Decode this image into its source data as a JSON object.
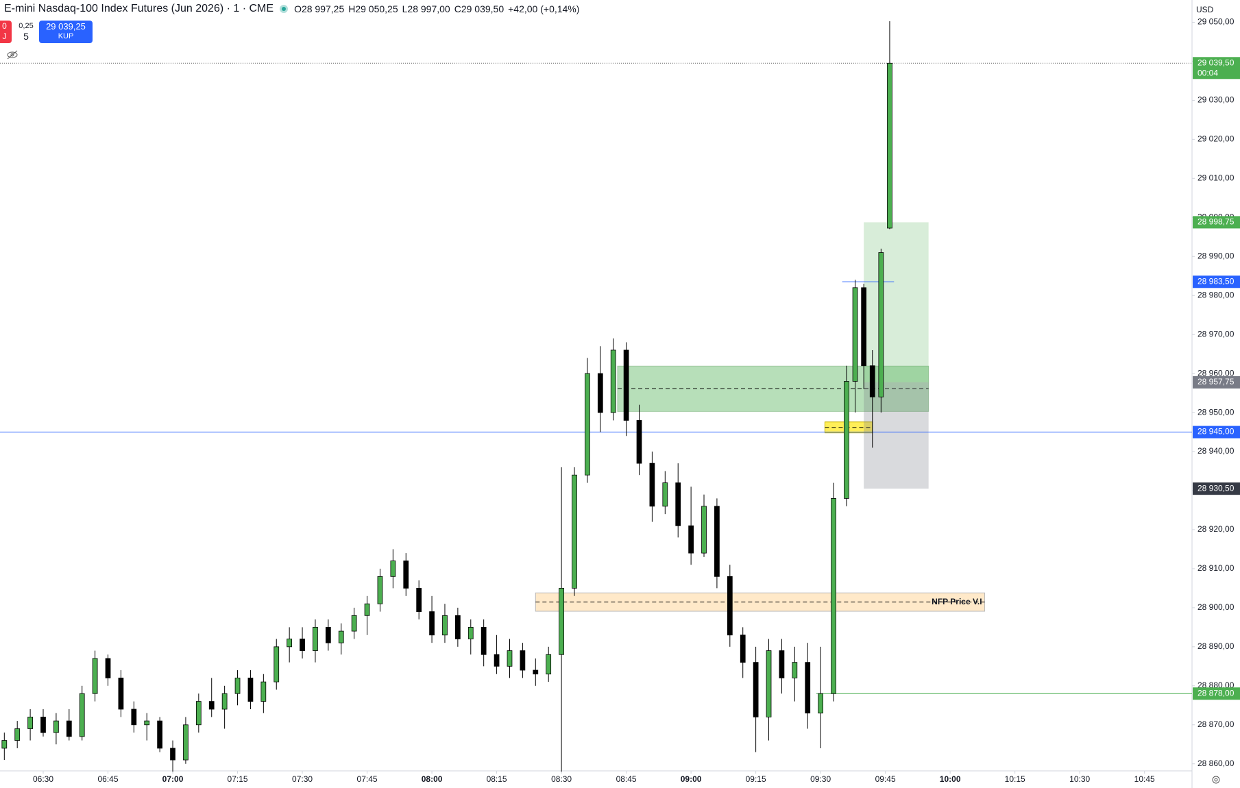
{
  "header": {
    "title": "E-mini Nasdaq-100 Index Futures (Jun 2026) · 1 · CME",
    "ohlc": [
      "O28 997,25",
      "H29 050,25",
      "L28 997,00",
      "C29 039,50",
      "+42,00 (+0,14%)"
    ],
    "sell": [
      "0",
      "J"
    ],
    "spread": [
      "0,25",
      "5"
    ],
    "buy": [
      "29 039,25",
      "KUP"
    ],
    "currency": "USD"
  },
  "chart_data": {
    "type": "candlestick",
    "x": [
      "06:21",
      "06:24",
      "06:27",
      "06:30",
      "06:33",
      "06:36",
      "06:39",
      "06:42",
      "06:45",
      "06:48",
      "06:51",
      "06:54",
      "06:57",
      "07:00",
      "07:03",
      "07:06",
      "07:09",
      "07:12",
      "07:15",
      "07:18",
      "07:21",
      "07:24",
      "07:27",
      "07:30",
      "07:33",
      "07:36",
      "07:39",
      "07:42",
      "07:45",
      "07:48",
      "07:51",
      "07:54",
      "07:57",
      "08:00",
      "08:03",
      "08:06",
      "08:09",
      "08:12",
      "08:15",
      "08:18",
      "08:21",
      "08:24",
      "08:27",
      "08:30",
      "08:33",
      "08:36",
      "08:39",
      "08:42",
      "08:45",
      "08:48",
      "08:51",
      "08:54",
      "08:57",
      "09:00",
      "09:03",
      "09:06",
      "09:09",
      "09:12",
      "09:15",
      "09:18",
      "09:21",
      "09:24",
      "09:27",
      "09:30",
      "09:33",
      "09:36",
      "09:38",
      "09:40",
      "09:42",
      "09:44",
      "09:46"
    ],
    "open": [
      28864,
      28866,
      28869,
      28872,
      28868,
      28871,
      28867,
      28878,
      28887,
      28882,
      28874,
      28870,
      28871,
      28864,
      28861,
      28870,
      28876,
      28874,
      28878,
      28882,
      28876,
      28881,
      28890,
      28892,
      28889,
      28895,
      28891,
      28894,
      28898,
      28901,
      28908,
      28912,
      28905,
      28899,
      28893,
      28898,
      28892,
      28895,
      28888,
      28885,
      28889,
      28884,
      28883,
      28888,
      28905,
      28934,
      28960,
      28950,
      28966,
      28948,
      28937,
      28926,
      28932,
      28921,
      28914,
      28926,
      28908,
      28893,
      28886,
      28872,
      28889,
      28882,
      28886,
      28873,
      28878,
      28928,
      28958,
      28982,
      28962,
      28954,
      28997.25
    ],
    "high": [
      28868,
      28871,
      28874,
      28874,
      28873,
      28874,
      28880,
      28889,
      28888,
      28884,
      28876,
      28873,
      28872,
      28866,
      28872,
      28878,
      28882,
      28880,
      28884,
      28884,
      28883,
      28892,
      28895,
      28895,
      28897,
      28897,
      28896,
      28900,
      28903,
      28910,
      28915,
      28914,
      28907,
      28903,
      28901,
      28900,
      28897,
      28897,
      28893,
      28892,
      28891,
      28887,
      28890,
      28936,
      28936,
      28964,
      28967,
      28969,
      28968,
      28952,
      28940,
      28935,
      28937,
      28931,
      28929,
      28928,
      28911,
      28895,
      28890,
      28892,
      28892,
      28890,
      28891,
      28890,
      28932,
      28962,
      28984,
      28983,
      28966,
      28992,
      29050.25
    ],
    "low": [
      28861,
      28864,
      28866,
      28867,
      28865,
      28866,
      28866,
      28876,
      28880,
      28872,
      28868,
      28866,
      28863,
      28858,
      28860,
      28868,
      28872,
      28869,
      28875,
      28874,
      28873,
      28879,
      28886,
      28887,
      28886,
      28889,
      28888,
      28892,
      28893,
      28899,
      28905,
      28903,
      28897,
      28891,
      28891,
      28890,
      28888,
      28885,
      28883,
      28882,
      28882,
      28880,
      28881,
      28858,
      28903,
      28932,
      28945,
      28948,
      28944,
      28934,
      28922,
      28924,
      28918,
      28911,
      28913,
      28905,
      28890,
      28882,
      28863,
      28866,
      28878,
      28876,
      28869,
      28864,
      28876,
      28926,
      28950,
      28956,
      28941,
      28950,
      28997
    ],
    "close": [
      28866,
      28869,
      28872,
      28868,
      28871,
      28867,
      28878,
      28887,
      28882,
      28874,
      28870,
      28871,
      28864,
      28861,
      28870,
      28876,
      28874,
      28878,
      28882,
      28876,
      28881,
      28890,
      28892,
      28889,
      28895,
      28891,
      28894,
      28898,
      28901,
      28908,
      28912,
      28905,
      28899,
      28893,
      28898,
      28892,
      28895,
      28888,
      28885,
      28889,
      28884,
      28883,
      28888,
      28905,
      28934,
      28960,
      28950,
      28966,
      28948,
      28937,
      28926,
      28932,
      28921,
      28914,
      28926,
      28908,
      28893,
      28886,
      28872,
      28889,
      28882,
      28886,
      28873,
      28878,
      28928,
      28958,
      28982,
      28962,
      28954,
      28991,
      29039.5
    ],
    "up_color": "#4caf50",
    "down_color": "#000000",
    "xlim": [
      "06:20",
      "10:56"
    ],
    "xticks": [
      "06:30",
      "06:45",
      "07:00",
      "07:15",
      "07:30",
      "07:45",
      "08:00",
      "08:15",
      "08:30",
      "08:45",
      "09:00",
      "09:15",
      "09:30",
      "09:45",
      "10:00",
      "10:15",
      "10:30",
      "10:45"
    ],
    "ylim": [
      28858.2,
      29055.7
    ],
    "yticks": [
      {
        "value": 28860,
        "label": "28 860,00"
      },
      {
        "value": 28870,
        "label": "28 870,00"
      },
      {
        "value": 28880,
        "label": "28 880,00"
      },
      {
        "value": 28890,
        "label": "28 890,00"
      },
      {
        "value": 28900,
        "label": "28 900,00"
      },
      {
        "value": 28910,
        "label": "28 910,00"
      },
      {
        "value": 28920,
        "label": "28 920,00"
      },
      {
        "value": 28930,
        "label": "28 930,00"
      },
      {
        "value": 28940,
        "label": "28 940,00"
      },
      {
        "value": 28950,
        "label": "28 950,00"
      },
      {
        "value": 28960,
        "label": "28 960,00"
      },
      {
        "value": 28970,
        "label": "28 970,00"
      },
      {
        "value": 28980,
        "label": "28 980,00"
      },
      {
        "value": 28990,
        "label": "28 990,00"
      },
      {
        "value": 29000,
        "label": "29 000,00"
      },
      {
        "value": 29010,
        "label": "29 010,00"
      },
      {
        "value": 29020,
        "label": "29 020,00"
      },
      {
        "value": 29030,
        "label": "29 030,00"
      },
      {
        "value": 29040,
        "label": "29 040,00"
      },
      {
        "value": 29050,
        "label": "29 050,00"
      }
    ],
    "zones": [
      {
        "from": "08:43",
        "to": "09:55",
        "low": 28950.3,
        "high": 28961.9,
        "color": "rgba(76,175,80,0.4)",
        "border": "#9fc9a0"
      },
      {
        "from": "08:24",
        "to": "10:08",
        "low": 28899.1,
        "high": 28903.8,
        "color": "rgba(255,183,77,0.3)",
        "border": "#b8b8b8",
        "label": "NFP Price V.I"
      },
      {
        "from": "09:31",
        "to": "09:42",
        "low": 28944.8,
        "high": 28947.6,
        "color": "rgba(255,235,59,0.85)",
        "border": "#c8b400"
      }
    ],
    "position": {
      "from": "09:40",
      "to": "09:55",
      "target": 28998.75,
      "entry": 28957.75,
      "stop": 28930.5
    },
    "price_lines": [
      {
        "value": 29039.5,
        "label": "29 039,50",
        "countdown": "00:04",
        "color": "#4caf50",
        "line": "dotted",
        "line_color": "#666666"
      },
      {
        "value": 28998.75,
        "label": "28 998,75",
        "color": "#4caf50"
      },
      {
        "value": 28983.5,
        "label": "28 983,50",
        "color": "#2962ff",
        "line": "solid",
        "line_color": "#2962ff",
        "from": "09:35",
        "to": "09:47"
      },
      {
        "value": 28957.75,
        "label": "28 957,75",
        "color": "#787b86"
      },
      {
        "value": 28945,
        "label": "28 945,00",
        "color": "#2962ff",
        "line": "solid",
        "line_color": "#2962ff"
      },
      {
        "value": 28930.5,
        "label": "28 930,50",
        "color": "#363a45"
      },
      {
        "value": 28878,
        "label": "28 878,00",
        "color": "#4caf50",
        "line": "solid",
        "line_color": "#4caf50",
        "from": "09:29"
      }
    ]
  }
}
